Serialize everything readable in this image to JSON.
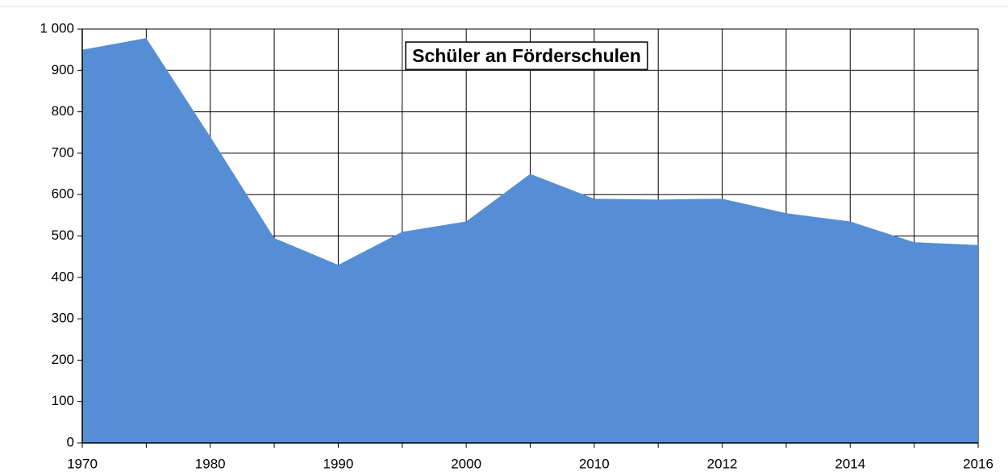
{
  "chart_data": {
    "type": "area",
    "title": "Schüler an Förderschulen",
    "categories": [
      "1970",
      null,
      "1980",
      null,
      "1990",
      null,
      "2000",
      null,
      "2010",
      null,
      "2012",
      null,
      "2014",
      null,
      "2016"
    ],
    "values": [
      950,
      978,
      740,
      495,
      430,
      510,
      535,
      650,
      590,
      588,
      590,
      555,
      535,
      485,
      478
    ],
    "color": "#558ed5",
    "ylim": [
      0,
      1000
    ],
    "yticks": [
      0,
      100,
      200,
      300,
      400,
      500,
      600,
      700,
      800,
      900,
      {
        "value": 1000,
        "label": "1 000"
      }
    ],
    "grid": true
  }
}
